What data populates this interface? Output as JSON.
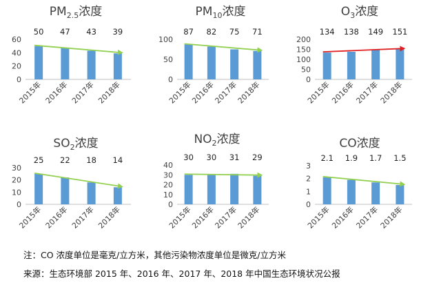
{
  "chart_data": [
    {
      "type": "bar",
      "title": "PM2.5浓度",
      "title_main": "PM",
      "title_sub": "2.5",
      "title_tail": "浓度",
      "categories": [
        "2015年",
        "2016年",
        "2017年",
        "2018年"
      ],
      "values": [
        50,
        47,
        43,
        39
      ],
      "ylim": [
        0,
        60
      ],
      "yticks": [
        0,
        20,
        40,
        60
      ],
      "trend_color": "#92d050",
      "bar_color": "#5b9bd5"
    },
    {
      "type": "bar",
      "title": "PM10浓度",
      "title_main": "PM",
      "title_sub": "10",
      "title_tail": "浓度",
      "categories": [
        "2015年",
        "2016年",
        "2017年",
        "2018年"
      ],
      "values": [
        87,
        82,
        75,
        71
      ],
      "ylim": [
        0,
        100
      ],
      "yticks": [
        0,
        50,
        100
      ],
      "trend_color": "#92d050",
      "bar_color": "#5b9bd5"
    },
    {
      "type": "bar",
      "title": "O3浓度",
      "title_main": "O",
      "title_sub": "3",
      "title_tail": "浓度",
      "categories": [
        "2015年",
        "2016年",
        "2017年",
        "2018年"
      ],
      "values": [
        134,
        138,
        149,
        151
      ],
      "ylim": [
        0,
        200
      ],
      "yticks": [
        0,
        50,
        100,
        150,
        200
      ],
      "trend_color": "#e02020",
      "bar_color": "#5b9bd5"
    },
    {
      "type": "bar",
      "title": "SO2浓度",
      "title_main": "SO",
      "title_sub": "2",
      "title_tail": "浓度",
      "categories": [
        "2015年",
        "2016年",
        "2017年",
        "2018年"
      ],
      "values": [
        25,
        22,
        18,
        14
      ],
      "ylim": [
        0,
        30
      ],
      "yticks": [
        0,
        10,
        20,
        30
      ],
      "trend_color": "#92d050",
      "bar_color": "#5b9bd5"
    },
    {
      "type": "bar",
      "title": "NO2浓度",
      "title_main": "NO",
      "title_sub": "2",
      "title_tail": "浓度",
      "categories": [
        "2015年",
        "2016年",
        "2017年",
        "2018年"
      ],
      "values": [
        30,
        30,
        31,
        29
      ],
      "ylim": [
        0,
        40
      ],
      "yticks": [
        0,
        10,
        20,
        30,
        40
      ],
      "trend_color": "#92d050",
      "bar_color": "#5b9bd5"
    },
    {
      "type": "bar",
      "title": "CO浓度",
      "title_main": "CO",
      "title_sub": "",
      "title_tail": "浓度",
      "categories": [
        "2015年",
        "2016年",
        "2017年",
        "2018年"
      ],
      "values": [
        2.1,
        1.9,
        1.7,
        1.5
      ],
      "value_labels": [
        "2.1",
        "1.9",
        "1.7",
        "1.5"
      ],
      "ylim": [
        0,
        3
      ],
      "yticks": [
        0,
        1,
        2,
        3
      ],
      "trend_color": "#92d050",
      "bar_color": "#5b9bd5"
    }
  ],
  "notes": {
    "note1": "注：CO 浓度单位是毫克/立方米，其他污染物浓度单位是微克/立方米",
    "note2": "来源：生态环境部 2015 年、2016 年、2017 年、2018 年中国生态环境状况公报"
  }
}
